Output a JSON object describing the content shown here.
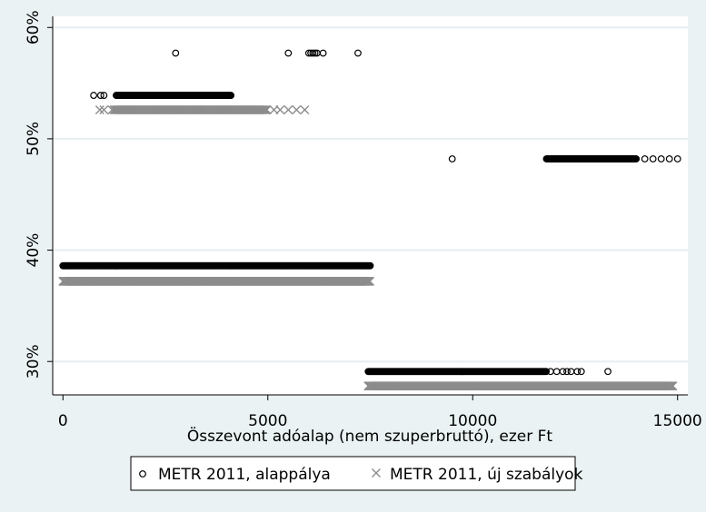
{
  "chart_data": {
    "type": "scatter",
    "xlabel": "Összevont adóalap (nem szuperbruttó), ezer Ft",
    "ylabel": "",
    "xlim": [
      -250,
      15250
    ],
    "ylim": [
      0.27,
      0.61
    ],
    "x_ticks": [
      {
        "value": 0,
        "label": "0"
      },
      {
        "value": 5000,
        "label": "5000"
      },
      {
        "value": 10000,
        "label": "10000"
      },
      {
        "value": 15000,
        "label": "15000"
      }
    ],
    "y_ticks": [
      {
        "value": 0.3,
        "label": "30%"
      },
      {
        "value": 0.4,
        "label": "40%"
      },
      {
        "value": 0.5,
        "label": "50%"
      },
      {
        "value": 0.6,
        "label": "60%"
      }
    ],
    "grid": true,
    "legend_position": "bottom",
    "series": [
      {
        "name": "METR 2011, alappálya",
        "marker": "circle",
        "color": "#000000",
        "runs": [
          {
            "x0": 0,
            "x1": 7500,
            "step": 10,
            "y": 0.386
          },
          {
            "x0": 7450,
            "x1": 11800,
            "step": 12,
            "y": 0.291
          },
          {
            "x0": 1300,
            "x1": 4100,
            "step": 20,
            "y": 0.539
          },
          {
            "x0": 11800,
            "x1": 14000,
            "step": 15,
            "y": 0.482
          }
        ],
        "points": [
          {
            "x": 750,
            "y": 0.539
          },
          {
            "x": 920,
            "y": 0.539
          },
          {
            "x": 1000,
            "y": 0.539
          },
          {
            "x": 2750,
            "y": 0.577
          },
          {
            "x": 5500,
            "y": 0.577
          },
          {
            "x": 6000,
            "y": 0.577
          },
          {
            "x": 6050,
            "y": 0.577
          },
          {
            "x": 6100,
            "y": 0.577
          },
          {
            "x": 6150,
            "y": 0.577
          },
          {
            "x": 6200,
            "y": 0.577
          },
          {
            "x": 6350,
            "y": 0.577
          },
          {
            "x": 7200,
            "y": 0.577
          },
          {
            "x": 9500,
            "y": 0.482
          },
          {
            "x": 14200,
            "y": 0.482
          },
          {
            "x": 14400,
            "y": 0.482
          },
          {
            "x": 14600,
            "y": 0.482
          },
          {
            "x": 14800,
            "y": 0.482
          },
          {
            "x": 15000,
            "y": 0.482
          },
          {
            "x": 11900,
            "y": 0.291
          },
          {
            "x": 12050,
            "y": 0.291
          },
          {
            "x": 12200,
            "y": 0.291
          },
          {
            "x": 12300,
            "y": 0.291
          },
          {
            "x": 12400,
            "y": 0.291
          },
          {
            "x": 12550,
            "y": 0.291
          },
          {
            "x": 12650,
            "y": 0.291
          },
          {
            "x": 13300,
            "y": 0.291
          }
        ]
      },
      {
        "name": "METR 2011, új szabályok",
        "marker": "x",
        "color": "#8c8c8c",
        "runs": [
          {
            "x0": 0,
            "x1": 7500,
            "step": 14,
            "y": 0.372
          },
          {
            "x0": 7450,
            "x1": 14900,
            "step": 18,
            "y": 0.278
          },
          {
            "x0": 1250,
            "x1": 5000,
            "step": 28,
            "y": 0.526
          }
        ],
        "points": [
          {
            "x": 900,
            "y": 0.526
          },
          {
            "x": 1000,
            "y": 0.526
          },
          {
            "x": 1200,
            "y": 0.526
          },
          {
            "x": 5150,
            "y": 0.526
          },
          {
            "x": 5300,
            "y": 0.526
          },
          {
            "x": 5500,
            "y": 0.526
          },
          {
            "x": 5700,
            "y": 0.526
          },
          {
            "x": 5900,
            "y": 0.526
          }
        ]
      }
    ]
  }
}
